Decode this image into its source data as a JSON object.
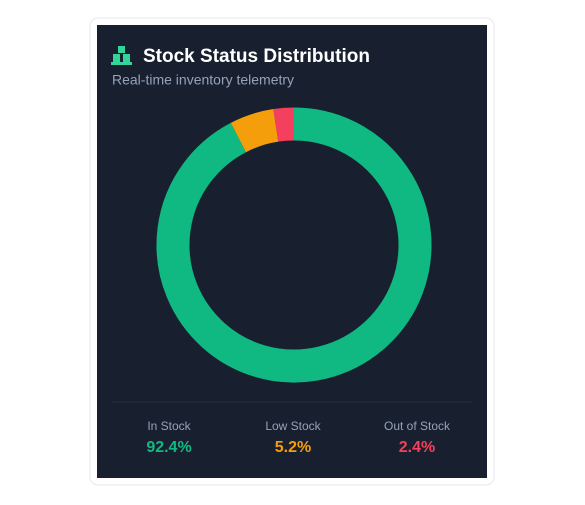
{
  "chart_data": {
    "type": "donut",
    "title": "Stock Status Distribution",
    "subtitle": "Real-time inventory telemetry",
    "categories": [
      "In Stock",
      "Low Stock",
      "Out of Stock"
    ],
    "values": [
      92.4,
      5.2,
      2.4
    ],
    "value_labels": [
      "92.4%",
      "5.2%",
      "2.4%"
    ],
    "colors": [
      "#10b981",
      "#f59e0b",
      "#f43f5e"
    ]
  }
}
